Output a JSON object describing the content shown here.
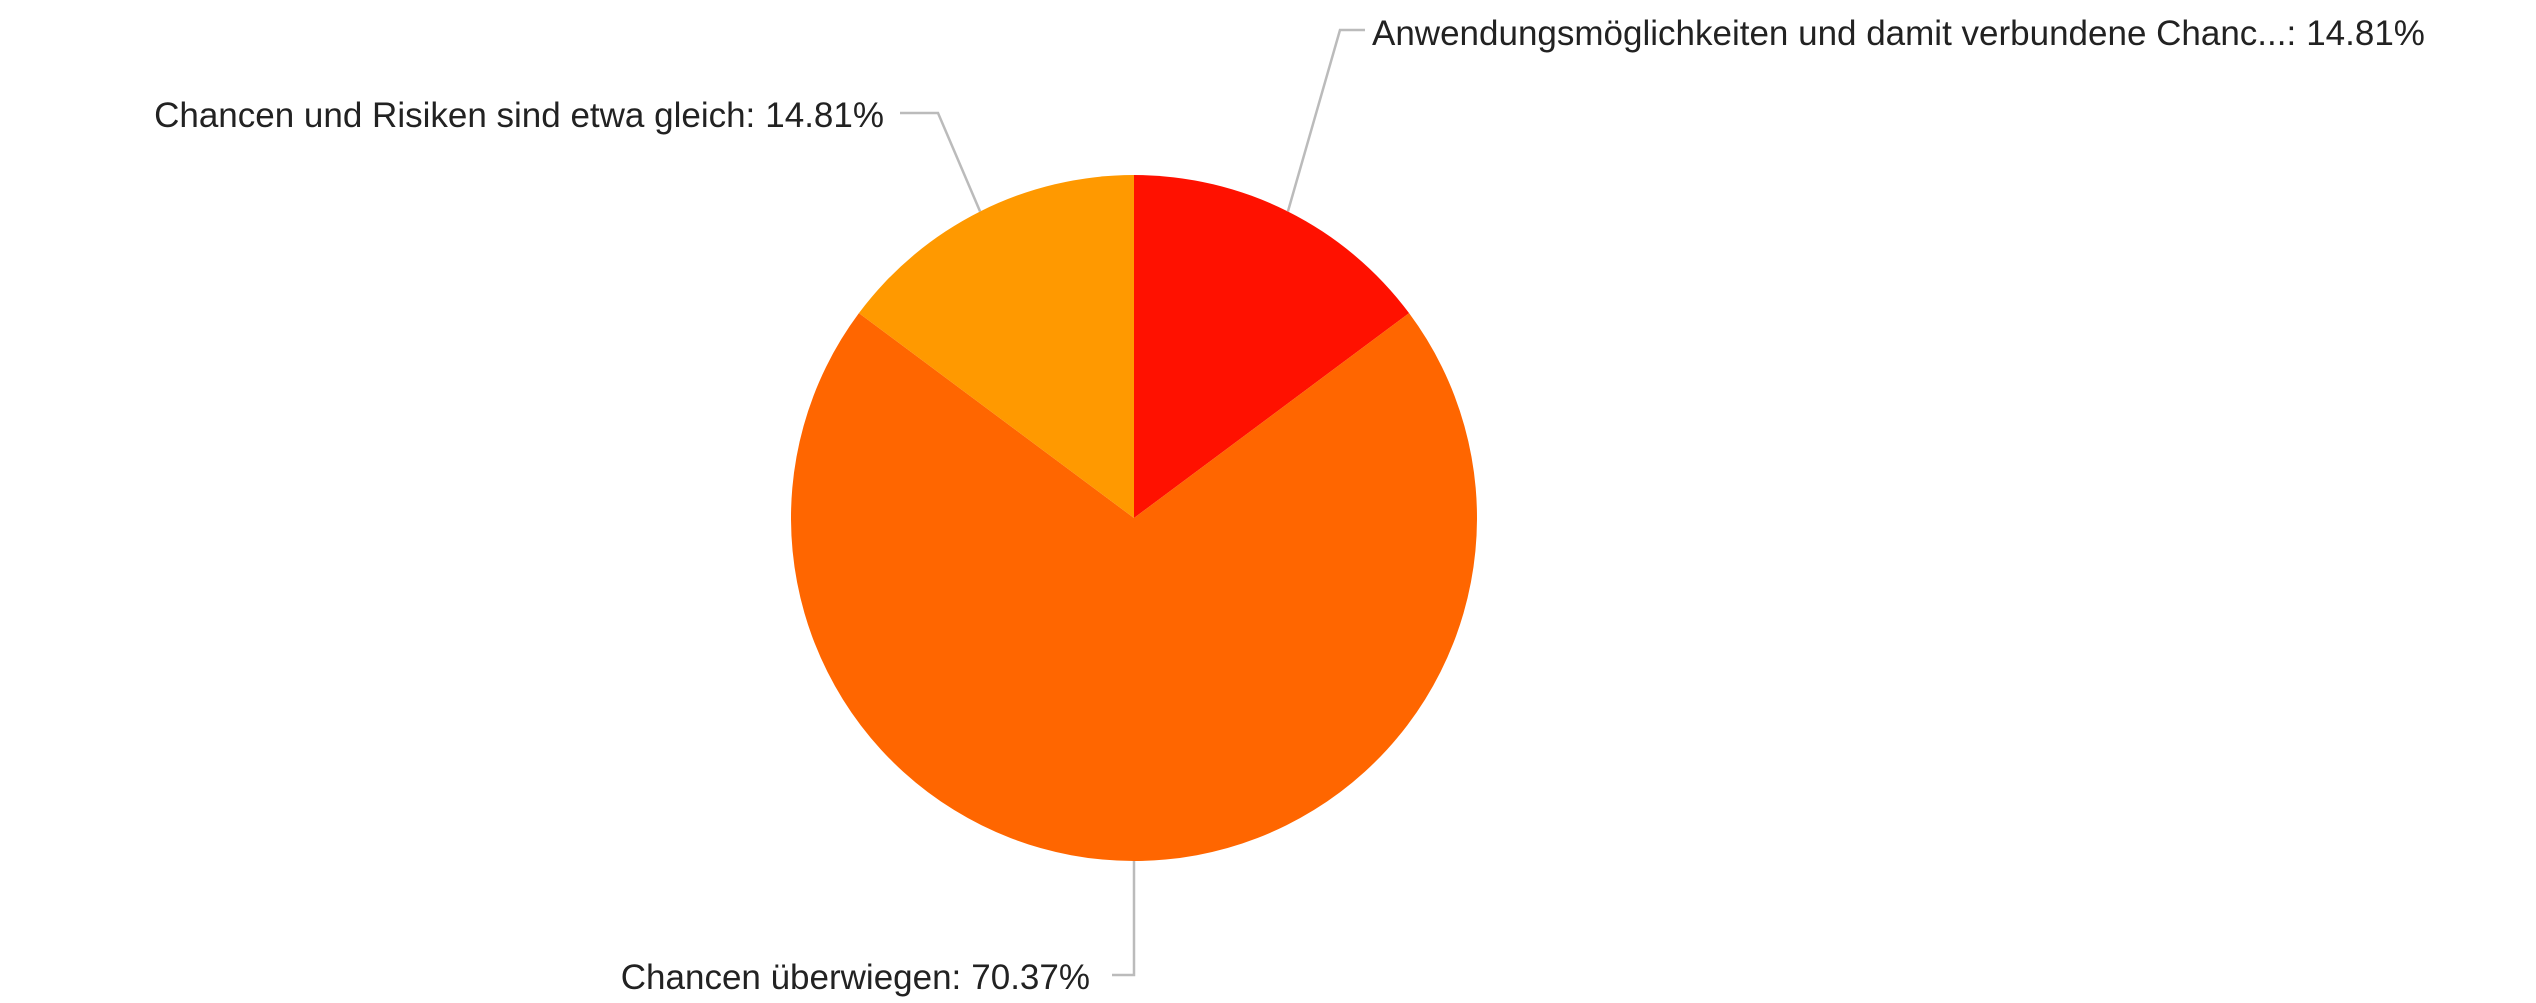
{
  "chart_data": {
    "type": "pie",
    "categories": [
      "Anwendungsmöglichkeiten und damit verbundene Chanc...:",
      "Chancen überwiegen:",
      "Chancen und Risiken sind etwa gleich:"
    ],
    "values": [
      14.81,
      70.37,
      14.81
    ],
    "value_labels": [
      "14.81%",
      "70.37%",
      "14.81%"
    ],
    "colors": [
      "#ff1100",
      "#ff6600",
      "#ff9900"
    ]
  }
}
